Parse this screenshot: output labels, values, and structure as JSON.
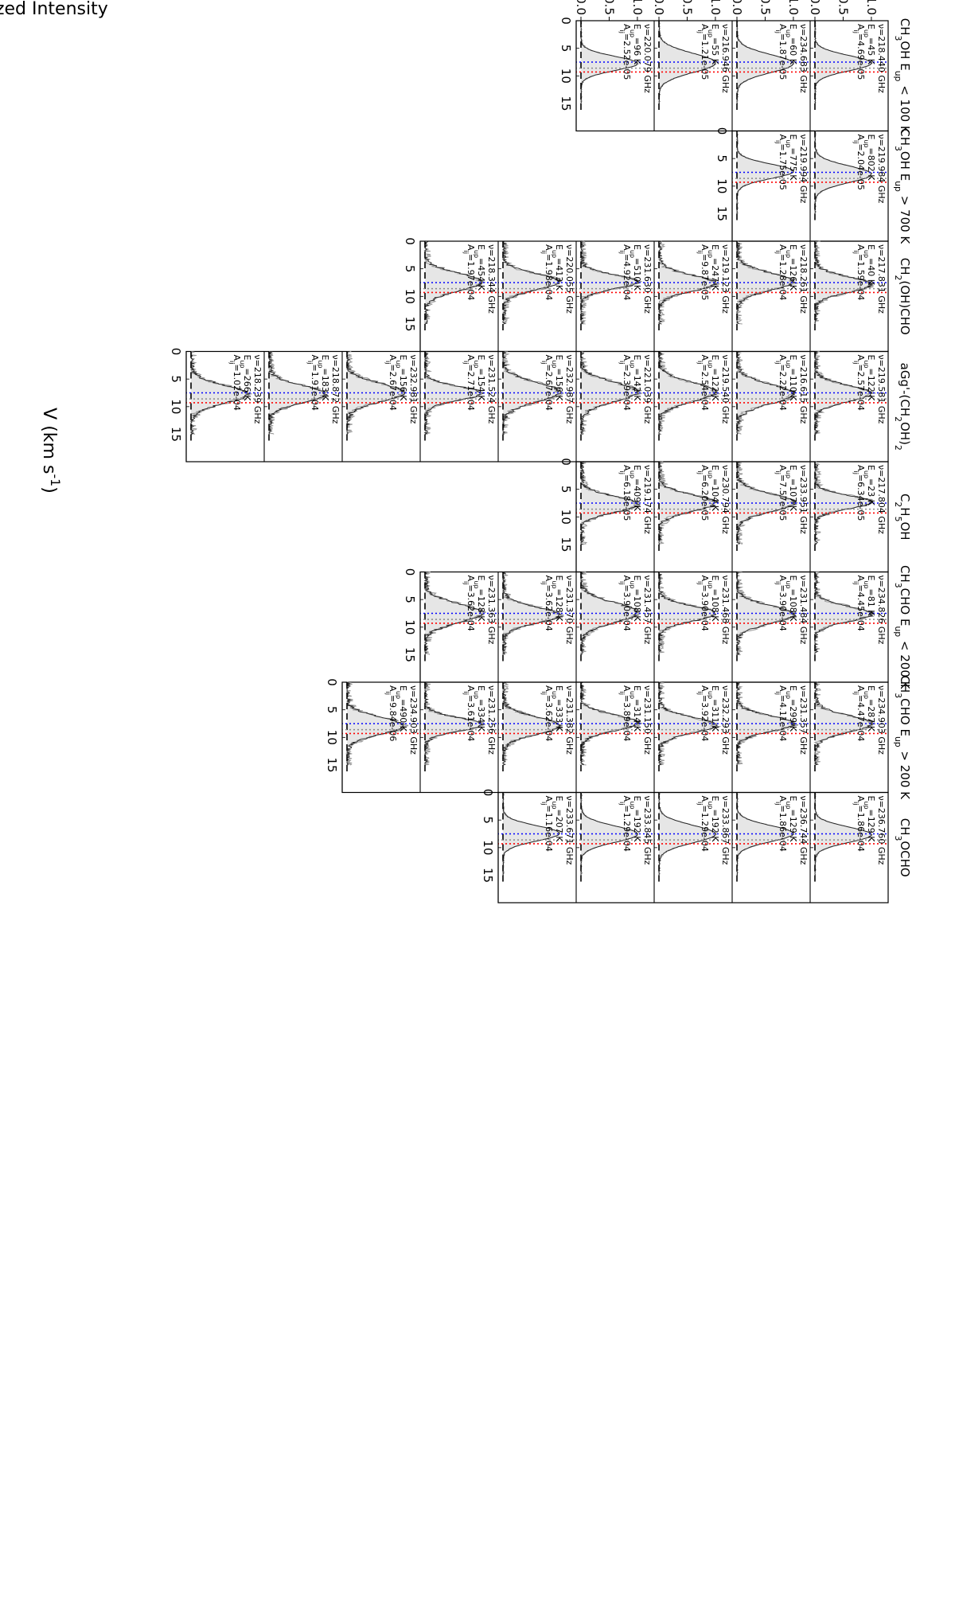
{
  "chart_data": {
    "type": "line",
    "ylabel": "Normalized Intensity",
    "xlabel": "V (km s$^{-1}$)",
    "xlim": [
      0,
      15
    ],
    "ylim": [
      0,
      1.1
    ],
    "yticks": [
      "0.0",
      "0.5",
      "1.0"
    ],
    "xticks": [
      "0",
      "5",
      "10",
      "15"
    ],
    "reference_velocities": [
      {
        "color": "#0000ff",
        "value": 7.5
      },
      {
        "color": "#888888",
        "value": 8.6
      },
      {
        "color": "#ff0000",
        "value": 9.3
      }
    ],
    "zero_line_style": "dashed",
    "fill_color": "#e6e6e6",
    "observed_line_color": "#999999",
    "model_line_color": "#222222",
    "columns": [
      {
        "title": "CH$_3$OH E$_{up}$ < 100 K",
        "panels": [
          {
            "nu": "218.440",
            "eup": "45",
            "aij": "4.69e-05"
          },
          {
            "nu": "234.683",
            "eup": "60",
            "aij": "1.87e-05"
          },
          {
            "nu": "216.946",
            "eup": "55",
            "aij": "1.21e-05"
          },
          {
            "nu": "220.079",
            "eup": "96",
            "aij": "2.52e-05"
          }
        ]
      },
      {
        "title": "CH$_3$OH E$_{up}$ > 700 K",
        "panels": [
          {
            "nu": "219.984",
            "eup": "802",
            "aij": "2.04e-05"
          },
          {
            "nu": "219.994",
            "eup": "775",
            "aij": "1.75e-05"
          }
        ]
      },
      {
        "title": "CH$_2$(OH)CHO",
        "panels": [
          {
            "nu": "217.831",
            "eup": "40",
            "aij": "1.59e-04"
          },
          {
            "nu": "218.261",
            "eup": "126",
            "aij": "1.28e-04"
          },
          {
            "nu": "219.123",
            "eup": "247",
            "aij": "9.87e-05"
          },
          {
            "nu": "231.630",
            "eup": "510",
            "aij": "4.92e-04"
          },
          {
            "nu": "220.055",
            "eup": "413",
            "aij": "1.98e-04"
          },
          {
            "nu": "218.344",
            "eup": "454",
            "aij": "1.97e-04"
          }
        ]
      },
      {
        "title": "aGg'-(CH$_2$OH)$_2$",
        "panels": [
          {
            "nu": "219.581",
            "eup": "122",
            "aij": "2.57e-04"
          },
          {
            "nu": "216.615",
            "eup": "110",
            "aij": "2.22e-04"
          },
          {
            "nu": "219.540",
            "eup": "122",
            "aij": "2.54e-04"
          },
          {
            "nu": "221.039",
            "eup": "142",
            "aij": "2.39e-04"
          },
          {
            "nu": "232.987",
            "eup": "156",
            "aij": "2.67e-04"
          },
          {
            "nu": "231.524",
            "eup": "154",
            "aij": "2.71e-04"
          },
          {
            "nu": "232.981",
            "eup": "156",
            "aij": "2.67e-04"
          },
          {
            "nu": "218.872",
            "eup": "183",
            "aij": "1.91e-04"
          },
          {
            "nu": "218.239",
            "eup": "266",
            "aij": "1.02e-04"
          }
        ]
      },
      {
        "title": "C$_2$H$_5$OH",
        "panels": [
          {
            "nu": "217.804",
            "eup": "23",
            "aij": "6.34e-05"
          },
          {
            "nu": "233.951",
            "eup": "107",
            "aij": "7.57e-05"
          },
          {
            "nu": "230.794",
            "eup": "104",
            "aij": "6.20e-05"
          },
          {
            "nu": "219.174",
            "eup": "409",
            "aij": "6.18e-05"
          }
        ]
      },
      {
        "title": "CH$_3$CHO E$_{up}$ < 200 K",
        "panels": [
          {
            "nu": "234.826",
            "eup": "81",
            "aij": "4.45e-04"
          },
          {
            "nu": "231.484",
            "eup": "108",
            "aij": "3.90e-04"
          },
          {
            "nu": "231.468",
            "eup": "108",
            "aij": "3.90e-04"
          },
          {
            "nu": "231.457",
            "eup": "108",
            "aij": "3.90e-04"
          },
          {
            "nu": "231.370",
            "eup": "128",
            "aij": "3.62e-04"
          },
          {
            "nu": "231.363",
            "eup": "128",
            "aij": "3.62e-04"
          }
        ]
      },
      {
        "title": "CH$_3$CHO E$_{up}$ > 200 K",
        "panels": [
          {
            "nu": "234.903",
            "eup": "287",
            "aij": "4.47e-04"
          },
          {
            "nu": "231.357",
            "eup": "299",
            "aij": "4.11e-04"
          },
          {
            "nu": "232.293",
            "eup": "311",
            "aij": "3.92e-04"
          },
          {
            "nu": "231.150",
            "eup": "314",
            "aij": "3.89e-04"
          },
          {
            "nu": "231.382",
            "eup": "333",
            "aij": "3.62e-04"
          },
          {
            "nu": "231.256",
            "eup": "334",
            "aij": "3.61e-04"
          },
          {
            "nu": "234.903",
            "eup": "490",
            "aij": "9.84e-06"
          }
        ]
      },
      {
        "title": "CH$_3$OCHO",
        "panels": [
          {
            "nu": "236.760",
            "eup": "129",
            "aij": "1.86e-04"
          },
          {
            "nu": "236.744",
            "eup": "129",
            "aij": "1.86e-04"
          },
          {
            "nu": "233.867",
            "eup": "192",
            "aij": "1.29e-04"
          },
          {
            "nu": "233.845",
            "eup": "192",
            "aij": "1.29e-04"
          },
          {
            "nu": "233.671",
            "eup": "207",
            "aij": "1.16e-04"
          }
        ]
      }
    ]
  }
}
